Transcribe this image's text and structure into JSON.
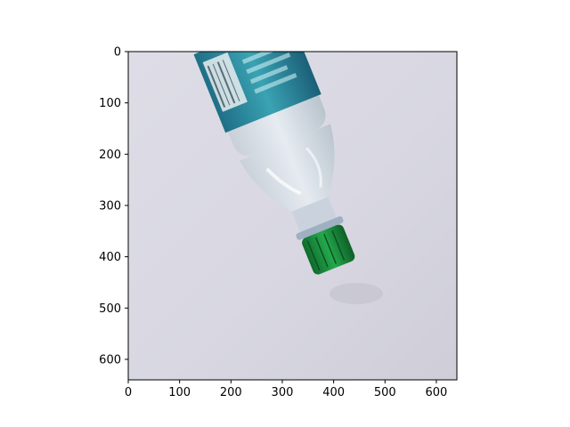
{
  "chart_data": {
    "type": "image",
    "title": "",
    "xlabel": "",
    "ylabel": "",
    "xlim": [
      0,
      640
    ],
    "ylim": [
      640,
      0
    ],
    "x_ticks": [
      0,
      100,
      200,
      300,
      400,
      500,
      600
    ],
    "y_ticks": [
      0,
      100,
      200,
      300,
      400,
      500,
      600
    ],
    "image_subject": "plastic-water-bottle-icon"
  },
  "colors": {
    "background": "#dcdbe4",
    "bottle_label": "#2c8a9c",
    "cap": "#1d8f3f"
  }
}
